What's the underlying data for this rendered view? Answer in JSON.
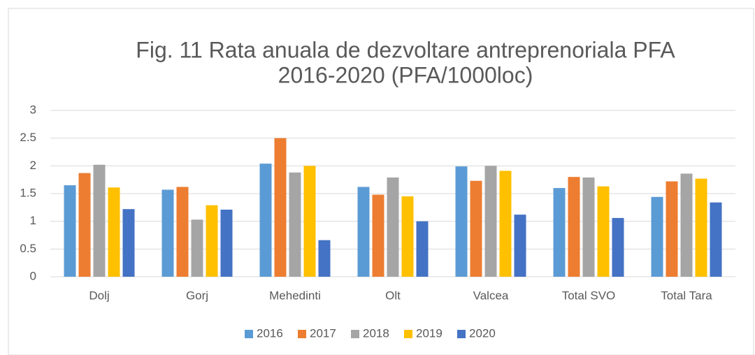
{
  "chart_data": {
    "type": "bar",
    "title": [
      "Fig. 11 Rata anuala de dezvoltare antreprenoriala PFA",
      "2016-2020 (PFA/1000loc)"
    ],
    "categories": [
      "Dolj",
      "Gorj",
      "Mehedinti",
      "Olt",
      "Valcea",
      "Total SVO",
      "Total Tara"
    ],
    "series": [
      {
        "name": "2016",
        "color": "#5b9bd5",
        "values": [
          1.65,
          1.57,
          2.04,
          1.62,
          1.99,
          1.6,
          1.44
        ]
      },
      {
        "name": "2017",
        "color": "#ed7d31",
        "values": [
          1.87,
          1.62,
          2.5,
          1.48,
          1.73,
          1.8,
          1.72
        ]
      },
      {
        "name": "2018",
        "color": "#a5a5a5",
        "values": [
          2.02,
          1.03,
          1.88,
          1.79,
          2.0,
          1.79,
          1.86
        ]
      },
      {
        "name": "2019",
        "color": "#ffc000",
        "values": [
          1.61,
          1.29,
          2.0,
          1.45,
          1.91,
          1.63,
          1.77
        ]
      },
      {
        "name": "2020",
        "color": "#4472c4",
        "values": [
          1.22,
          1.21,
          0.66,
          1.0,
          1.12,
          1.06,
          1.34
        ]
      }
    ],
    "ylim": [
      0,
      3
    ],
    "yticks": [
      0,
      0.5,
      1,
      1.5,
      2,
      2.5,
      3
    ],
    "grid": true,
    "legend": "bottom"
  }
}
